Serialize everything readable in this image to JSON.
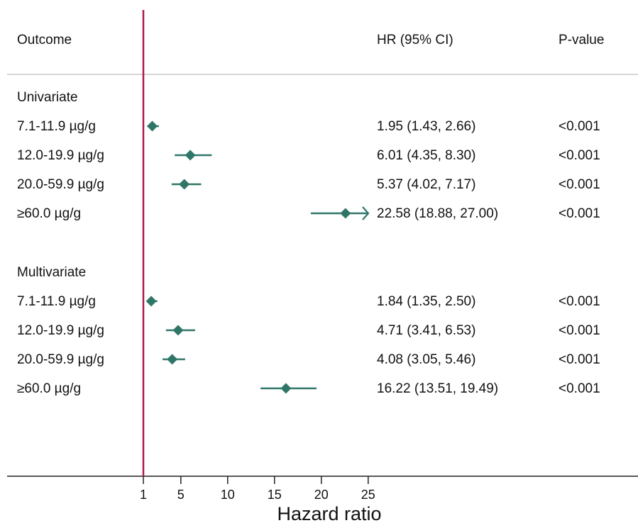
{
  "colors": {
    "marker": "#2f7668",
    "reference_line": "#b0194a",
    "divider": "#c8c8c8",
    "axis": "#222222"
  },
  "headers": {
    "outcome": "Outcome",
    "hr": "HR (95% CI)",
    "pvalue": "P-value"
  },
  "chart_data": {
    "type": "forest",
    "xlabel": "Hazard ratio",
    "x_ticks": [
      1,
      5,
      10,
      15,
      20,
      25
    ],
    "xlim": [
      1,
      25
    ],
    "reference_value": 1,
    "grid": false,
    "groups": [
      {
        "label": "Univariate",
        "rows": [
          {
            "label": "7.1-11.9 µg/g",
            "hr": 1.95,
            "lo": 1.43,
            "hi": 2.66,
            "text": "1.95 (1.43, 2.66)",
            "p": "<0.001"
          },
          {
            "label": "12.0-19.9 µg/g",
            "hr": 6.01,
            "lo": 4.35,
            "hi": 8.3,
            "text": "6.01 (4.35, 8.30)",
            "p": "<0.001"
          },
          {
            "label": "20.0-59.9 µg/g",
            "hr": 5.37,
            "lo": 4.02,
            "hi": 7.17,
            "text": "5.37 (4.02, 7.17)",
            "p": "<0.001"
          },
          {
            "label": "≥60.0 µg/g",
            "hr": 22.58,
            "lo": 18.88,
            "hi": 27.0,
            "text": "22.58 (18.88, 27.00)",
            "p": "<0.001",
            "truncated_hi": true
          }
        ]
      },
      {
        "label": "Multivariate",
        "rows": [
          {
            "label": "7.1-11.9 µg/g",
            "hr": 1.84,
            "lo": 1.35,
            "hi": 2.5,
            "text": "1.84 (1.35, 2.50)",
            "p": "<0.001"
          },
          {
            "label": "12.0-19.9 µg/g",
            "hr": 4.71,
            "lo": 3.41,
            "hi": 6.53,
            "text": "4.71 (3.41, 6.53)",
            "p": "<0.001"
          },
          {
            "label": "20.0-59.9 µg/g",
            "hr": 4.08,
            "lo": 3.05,
            "hi": 5.46,
            "text": "4.08 (3.05, 5.46)",
            "p": "<0.001"
          },
          {
            "label": "≥60.0 µg/g",
            "hr": 16.22,
            "lo": 13.51,
            "hi": 19.49,
            "text": "16.22 (13.51, 19.49)",
            "p": "<0.001"
          }
        ]
      }
    ]
  }
}
